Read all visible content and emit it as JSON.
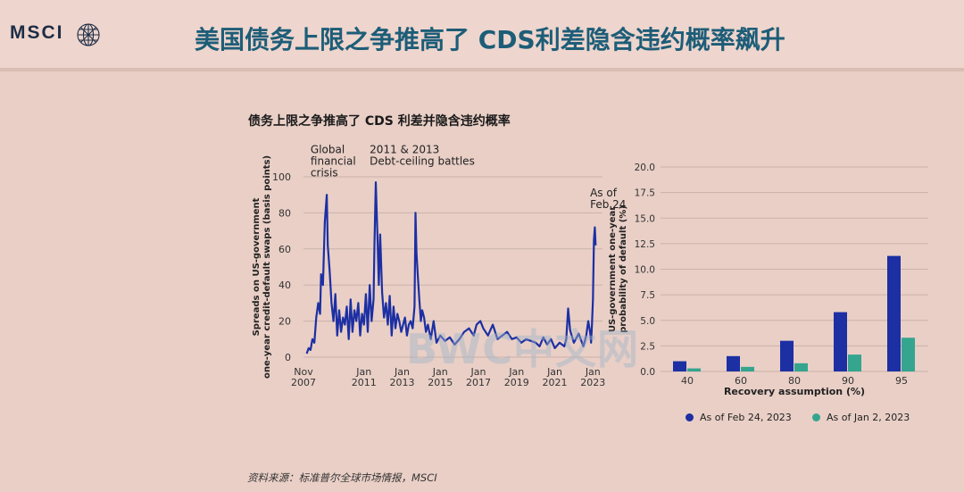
{
  "brand": {
    "logo_text": "MSCI"
  },
  "page": {
    "title": "美国债务上限之争推高了 CDS利差隐含违约概率飙升",
    "chart_title": "债务上限之争推高了 CDS 利差并隐含违约概率",
    "source": "资料来源：标准普尔全球市场情报，MSCI",
    "watermark": "BWC中文网"
  },
  "colors": {
    "series_dark_blue": "#1c2fa3",
    "series_teal": "#35a58f",
    "title_teal": "#1d5d78"
  },
  "chart_data": [
    {
      "type": "line",
      "ylabel": "Spreads on US-government one-year credit-default swaps (basis points)",
      "ylim": [
        0,
        100
      ],
      "yticks": [
        "0",
        "20",
        "40",
        "60",
        "80",
        "100"
      ],
      "xlim": [
        2007.83,
        2023.5
      ],
      "xticks": [
        {
          "x": 2007.83,
          "label": [
            "Nov",
            "2007"
          ]
        },
        {
          "x": 2011.0,
          "label": [
            "Jan",
            "2011"
          ]
        },
        {
          "x": 2013.0,
          "label": [
            "Jan",
            "2013"
          ]
        },
        {
          "x": 2015.0,
          "label": [
            "Jan",
            "2015"
          ]
        },
        {
          "x": 2017.0,
          "label": [
            "Jan",
            "2017"
          ]
        },
        {
          "x": 2019.0,
          "label": [
            "Jan",
            "2019"
          ]
        },
        {
          "x": 2021.0,
          "label": [
            "Jan",
            "2021"
          ]
        },
        {
          "x": 2023.0,
          "label": [
            "Jan",
            "2023"
          ]
        }
      ],
      "annotations": [
        {
          "x": 2008.2,
          "y": 113,
          "lines": [
            "Global",
            "financial",
            "crisis"
          ]
        },
        {
          "x": 2011.3,
          "y": 113,
          "lines": [
            "2011 & 2013",
            "Debt-ceiling battles"
          ]
        },
        {
          "x": 2022.85,
          "y": 89,
          "lines": [
            "As of",
            "Feb 24"
          ]
        }
      ],
      "series": [
        {
          "color": "#1c2fa3",
          "x": [
            2008.0,
            2008.1,
            2008.2,
            2008.3,
            2008.4,
            2008.5,
            2008.6,
            2008.7,
            2008.75,
            2008.85,
            2008.95,
            2009.05,
            2009.1,
            2009.2,
            2009.3,
            2009.4,
            2009.5,
            2009.6,
            2009.7,
            2009.8,
            2009.9,
            2010.0,
            2010.1,
            2010.2,
            2010.3,
            2010.4,
            2010.5,
            2010.6,
            2010.7,
            2010.8,
            2010.9,
            2011.0,
            2011.1,
            2011.2,
            2011.3,
            2011.4,
            2011.5,
            2011.55,
            2011.62,
            2011.7,
            2011.78,
            2011.85,
            2011.95,
            2012.05,
            2012.15,
            2012.25,
            2012.35,
            2012.45,
            2012.55,
            2012.65,
            2012.75,
            2012.85,
            2012.95,
            2013.05,
            2013.15,
            2013.25,
            2013.35,
            2013.45,
            2013.55,
            2013.65,
            2013.7,
            2013.75,
            2013.82,
            2013.9,
            2013.98,
            2014.05,
            2014.15,
            2014.25,
            2014.35,
            2014.5,
            2014.65,
            2014.8,
            2015.0,
            2015.25,
            2015.5,
            2015.75,
            2016.0,
            2016.25,
            2016.5,
            2016.75,
            2016.9,
            2017.1,
            2017.25,
            2017.5,
            2017.75,
            2018.0,
            2018.25,
            2018.5,
            2018.75,
            2019.0,
            2019.25,
            2019.5,
            2019.75,
            2020.0,
            2020.2,
            2020.4,
            2020.6,
            2020.8,
            2021.0,
            2021.25,
            2021.5,
            2021.6,
            2021.7,
            2021.8,
            2022.0,
            2022.25,
            2022.5,
            2022.65,
            2022.75,
            2022.85,
            2022.9,
            2022.95,
            2023.0,
            2023.05,
            2023.1,
            2023.14
          ],
          "y": [
            2,
            5,
            4,
            10,
            8,
            22,
            30,
            24,
            46,
            40,
            75,
            90,
            62,
            48,
            30,
            20,
            35,
            12,
            26,
            14,
            22,
            18,
            28,
            10,
            32,
            14,
            26,
            20,
            30,
            12,
            24,
            18,
            35,
            14,
            40,
            20,
            32,
            62,
            97,
            70,
            40,
            68,
            36,
            22,
            30,
            18,
            34,
            12,
            28,
            16,
            24,
            20,
            14,
            18,
            22,
            12,
            18,
            20,
            16,
            28,
            80,
            58,
            45,
            32,
            20,
            26,
            22,
            14,
            18,
            10,
            20,
            8,
            12,
            9,
            11,
            7,
            10,
            14,
            16,
            12,
            18,
            20,
            16,
            12,
            18,
            10,
            12,
            14,
            10,
            11,
            8,
            10,
            9,
            8,
            6,
            11,
            7,
            10,
            5,
            8,
            6,
            10,
            27,
            15,
            8,
            13,
            6,
            12,
            20,
            14,
            8,
            18,
            32,
            65,
            72,
            62
          ]
        }
      ]
    },
    {
      "type": "bar",
      "xlabel": "Recovery assumption (%)",
      "ylabel": "US-government one-year probability of default (%)",
      "categories": [
        "40",
        "60",
        "80",
        "90",
        "95"
      ],
      "ylim": [
        0,
        20
      ],
      "yticks": [
        "0.0",
        "2.5",
        "5.0",
        "7.5",
        "10.0",
        "12.5",
        "15.0",
        "17.5",
        "20.0"
      ],
      "series": [
        {
          "name": "As of Feb 24, 2023",
          "color": "#1c2fa3",
          "values": [
            1.0,
            1.5,
            3.0,
            5.8,
            11.3
          ]
        },
        {
          "name": "As of Jan 2, 2023",
          "color": "#35a58f",
          "values": [
            0.3,
            0.45,
            0.8,
            1.65,
            3.3
          ]
        }
      ]
    }
  ]
}
